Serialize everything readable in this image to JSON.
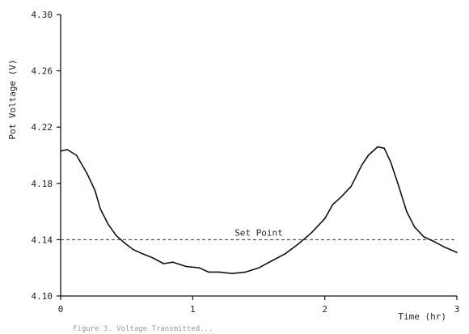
{
  "chart_data": {
    "type": "line",
    "title": "",
    "xlabel": "Time (hr)",
    "ylabel": "Pot Voltage (V)",
    "xlim": [
      0,
      3
    ],
    "ylim": [
      4.1,
      4.3
    ],
    "x_ticks": [
      0,
      1,
      2,
      3
    ],
    "x_tick_labels": [
      "0",
      "1",
      "2",
      "3"
    ],
    "y_ticks": [
      4.1,
      4.14,
      4.18,
      4.22,
      4.26,
      4.3
    ],
    "y_tick_labels": [
      "4.10",
      "4.14",
      "4.18",
      "4.22",
      "4.26",
      "4.30"
    ],
    "grid": false,
    "series": [
      {
        "x": [
          0,
          0.05,
          0.12,
          0.2,
          0.26,
          0.3,
          0.36,
          0.42,
          0.48,
          0.55,
          0.62,
          0.7,
          0.78,
          0.85,
          0.95,
          1.05,
          1.12,
          1.2,
          1.3,
          1.4,
          1.5,
          1.6,
          1.7,
          1.8,
          1.9,
          2.0,
          2.06,
          2.12,
          2.2,
          2.28,
          2.33,
          2.4,
          2.45,
          2.5,
          2.56,
          2.62,
          2.68,
          2.75,
          2.82,
          2.9,
          3.0
        ],
        "values": [
          4.203,
          4.204,
          4.2,
          4.187,
          4.175,
          4.162,
          4.151,
          4.143,
          4.138,
          4.133,
          4.13,
          4.127,
          4.123,
          4.124,
          4.121,
          4.12,
          4.117,
          4.117,
          4.116,
          4.117,
          4.12,
          4.125,
          4.13,
          4.137,
          4.145,
          4.155,
          4.165,
          4.17,
          4.178,
          4.193,
          4.2,
          4.206,
          4.205,
          4.195,
          4.178,
          4.16,
          4.149,
          4.142,
          4.139,
          4.135,
          4.131
        ]
      }
    ],
    "reference_line": {
      "label": "Set Point",
      "y": 4.14,
      "style": "dashed"
    },
    "caption": "Figure 3. Voltage Transmitted..."
  }
}
